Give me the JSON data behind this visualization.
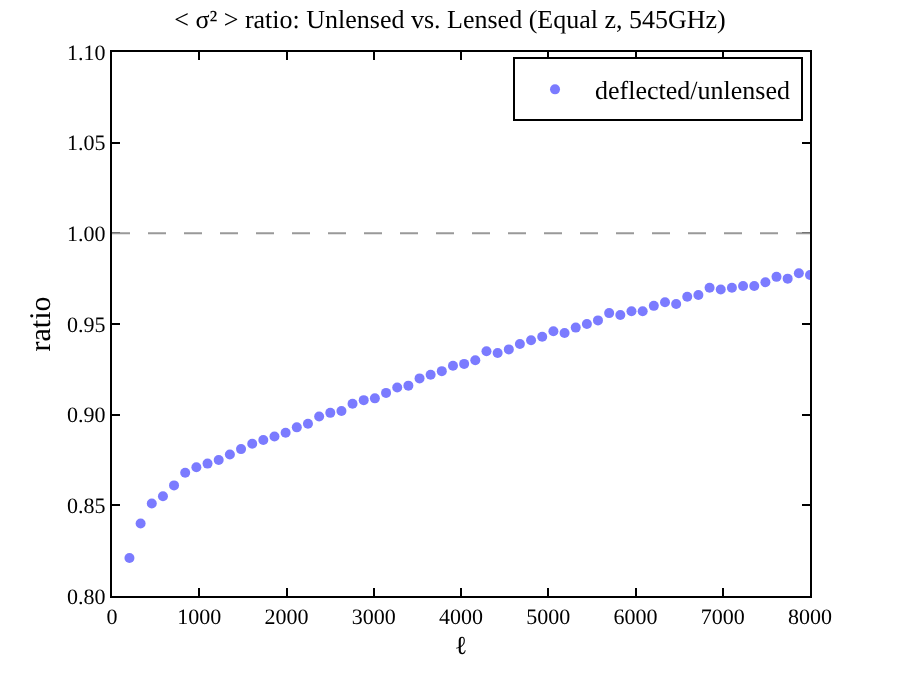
{
  "chart_data": {
    "type": "scatter",
    "title": "< σ² > ratio: Unlensed vs. Lensed (Equal z, 545GHz)",
    "xlabel": "ℓ",
    "ylabel": "ratio",
    "x": [
      200,
      328,
      456,
      584,
      711,
      839,
      967,
      1095,
      1223,
      1351,
      1479,
      1607,
      1734,
      1862,
      1990,
      2118,
      2246,
      2374,
      2502,
      2630,
      2757,
      2885,
      3013,
      3141,
      3269,
      3397,
      3525,
      3652,
      3780,
      3908,
      4036,
      4164,
      4292,
      4420,
      4548,
      4675,
      4803,
      4931,
      5059,
      5187,
      5315,
      5443,
      5570,
      5698,
      5826,
      5954,
      6082,
      6210,
      6338,
      6466,
      6593,
      6721,
      6849,
      6977,
      7105,
      7233,
      7361,
      7489,
      7616,
      7744,
      7872,
      8000
    ],
    "series": [
      {
        "name": "deflected/unlensed",
        "color": "#7b7bff",
        "values": [
          0.821,
          0.84,
          0.851,
          0.855,
          0.861,
          0.868,
          0.871,
          0.873,
          0.875,
          0.878,
          0.881,
          0.884,
          0.886,
          0.888,
          0.89,
          0.893,
          0.895,
          0.899,
          0.901,
          0.902,
          0.906,
          0.908,
          0.909,
          0.912,
          0.915,
          0.916,
          0.92,
          0.922,
          0.924,
          0.927,
          0.928,
          0.93,
          0.935,
          0.934,
          0.936,
          0.939,
          0.941,
          0.943,
          0.946,
          0.945,
          0.948,
          0.95,
          0.952,
          0.956,
          0.955,
          0.957,
          0.957,
          0.96,
          0.962,
          0.961,
          0.965,
          0.966,
          0.97,
          0.969,
          0.97,
          0.971,
          0.971,
          0.973,
          0.976,
          0.975,
          0.978,
          0.977
        ]
      }
    ],
    "xlim": [
      0,
      8000
    ],
    "xticks": [
      0,
      1000,
      2000,
      3000,
      4000,
      5000,
      6000,
      7000,
      8000
    ],
    "ylim": [
      0.8,
      1.1
    ],
    "yticks": [
      {
        "value": 0.8,
        "label": "0.80"
      },
      {
        "value": 0.85,
        "label": "0.85"
      },
      {
        "value": 0.9,
        "label": "0.90"
      },
      {
        "value": 0.95,
        "label": "0.95"
      },
      {
        "value": 1.0,
        "label": "1.00"
      },
      {
        "value": 1.05,
        "label": "1.05"
      },
      {
        "value": 1.1,
        "label": "1.10"
      }
    ],
    "ref_lines": [
      {
        "axis": "y",
        "value": 1.0,
        "color": "#999999",
        "line_style": "dashed"
      }
    ],
    "marker": "circle",
    "legend": "top right"
  }
}
